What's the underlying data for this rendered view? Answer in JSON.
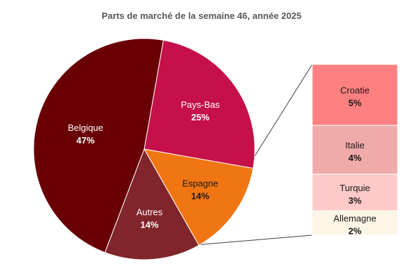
{
  "chart_data": {
    "type": "bar-of-pie",
    "title": "Parts de marché de la semaine 46, année 2025",
    "pie": [
      {
        "label": "Pays-Bas",
        "value": 25,
        "value_label": "25%",
        "color": "#c5104a",
        "text_color": "#ffffff"
      },
      {
        "label": "Espagne",
        "value": 14,
        "value_label": "14%",
        "color": "#f07613",
        "text_color": "#1a1a1a"
      },
      {
        "label": "Autres",
        "value": 14,
        "value_label": "14%",
        "color": "#80252b",
        "text_color": "#ffffff"
      },
      {
        "label": "Belgique",
        "value": 47,
        "value_label": "47%",
        "color": "#680004",
        "text_color": "#ffffff"
      }
    ],
    "breakdown_of": "Autres",
    "breakdown": [
      {
        "label": "Croatie",
        "value": 5,
        "value_label": "5%",
        "color": "#ff8080",
        "text_color": "#1a1a1a"
      },
      {
        "label": "Italie",
        "value": 4,
        "value_label": "4%",
        "color": "#f0aaaa",
        "text_color": "#1a1a1a"
      },
      {
        "label": "Turquie",
        "value": 3,
        "value_label": "3%",
        "color": "#ffc9c9",
        "text_color": "#1a1a1a"
      },
      {
        "label": "Allemagne",
        "value": 2,
        "value_label": "2%",
        "color": "#fdf5e6",
        "text_color": "#1a1a1a"
      }
    ]
  }
}
